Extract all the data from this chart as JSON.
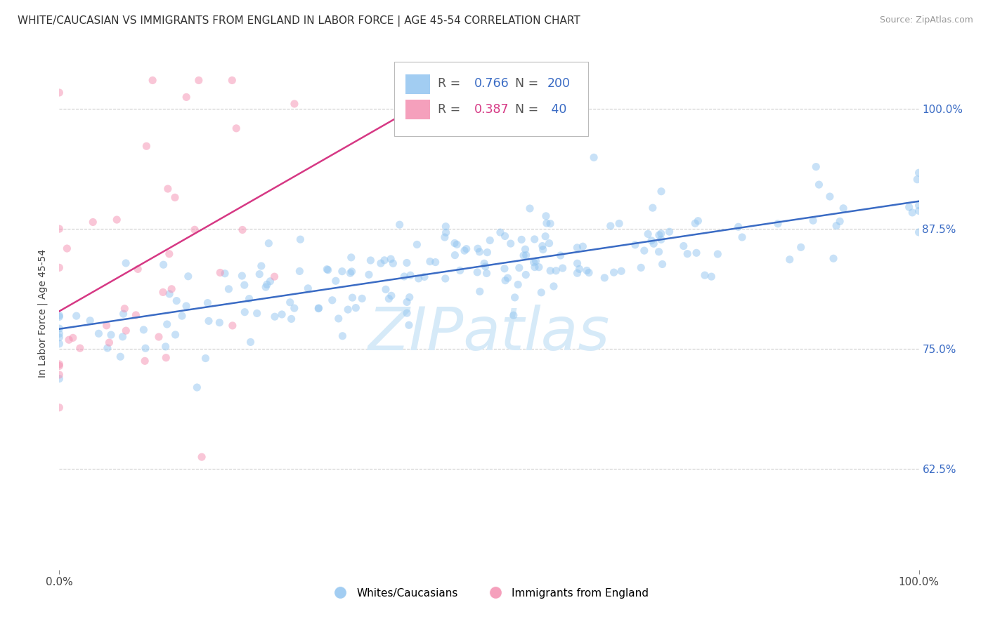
{
  "title": "WHITE/CAUCASIAN VS IMMIGRANTS FROM ENGLAND IN LABOR FORCE | AGE 45-54 CORRELATION CHART",
  "source": "Source: ZipAtlas.com",
  "ylabel": "In Labor Force | Age 45-54",
  "xlim": [
    0.0,
    1.0
  ],
  "ylim": [
    0.52,
    1.055
  ],
  "ytick_labels": [
    "62.5%",
    "75.0%",
    "87.5%",
    "100.0%"
  ],
  "ytick_values": [
    0.625,
    0.75,
    0.875,
    1.0
  ],
  "xtick_labels": [
    "0.0%",
    "100.0%"
  ],
  "xtick_values": [
    0.0,
    1.0
  ],
  "legend_blue_R": "0.766",
  "legend_blue_N": "200",
  "legend_pink_R": "0.387",
  "legend_pink_N": " 40",
  "legend_label_blue": "Whites/Caucasians",
  "legend_label_pink": "Immigrants from England",
  "blue_color": "#92C5F0",
  "pink_color": "#F48FB1",
  "blue_line_color": "#3A6BC4",
  "pink_line_color": "#D63884",
  "tick_color": "#3A6BC4",
  "watermark_color": "#D6EAF8",
  "watermark": "ZIPatlas",
  "blue_N": 200,
  "pink_N": 40,
  "blue_R": 0.766,
  "pink_R": 0.387,
  "title_fontsize": 11,
  "axis_label_fontsize": 10,
  "tick_fontsize": 11,
  "scatter_alpha": 0.5,
  "scatter_size": 65,
  "background_color": "#FFFFFF",
  "grid_color": "#CCCCCC"
}
